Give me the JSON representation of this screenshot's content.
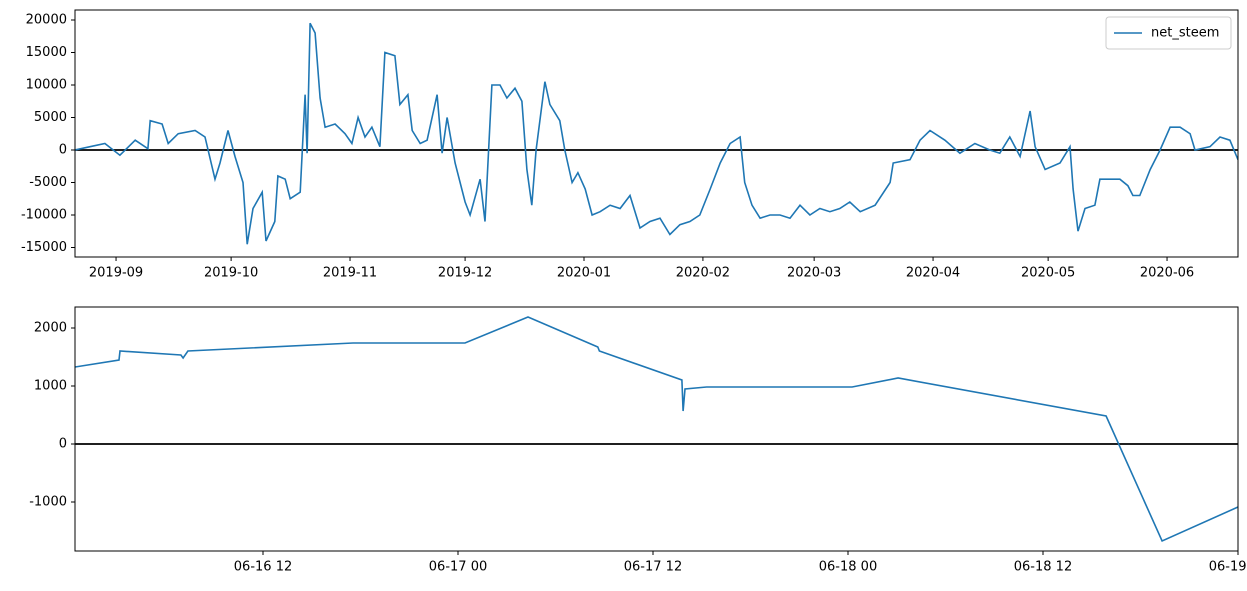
{
  "chart_data": [
    {
      "type": "line",
      "legend": "upper right",
      "xlim": [
        -10.7,
        292.5
      ],
      "xticks": [
        {
          "value": 0,
          "label": "2019-09"
        },
        {
          "value": 30,
          "label": "2019-10"
        },
        {
          "value": 61,
          "label": "2019-11"
        },
        {
          "value": 91,
          "label": "2019-12"
        },
        {
          "value": 122,
          "label": "2020-01"
        },
        {
          "value": 153,
          "label": "2020-02"
        },
        {
          "value": 182,
          "label": "2020-03"
        },
        {
          "value": 213,
          "label": "2020-04"
        },
        {
          "value": 243,
          "label": "2020-05"
        },
        {
          "value": 274,
          "label": "2020-06"
        }
      ],
      "ylim": [
        -16462,
        21538
      ],
      "yticks": [
        -15000,
        -10000,
        -5000,
        0,
        5000,
        10000,
        15000,
        20000
      ],
      "hline": 0,
      "x": [
        -10.7,
        -6.8,
        -2.9,
        1.0,
        5.0,
        8.3,
        8.9,
        12.0,
        13.6,
        16.2,
        20.6,
        23.2,
        25.8,
        27.1,
        29.2,
        31.0,
        33.1,
        34.2,
        35.7,
        38.1,
        39.1,
        41.4,
        42.2,
        44.1,
        45.4,
        48.0,
        49.3,
        49.8,
        50.6,
        51.9,
        53.2,
        54.5,
        57.1,
        59.7,
        61.5,
        63.1,
        64.9,
        66.7,
        68.8,
        70.1,
        72.7,
        74.0,
        76.1,
        77.2,
        79.3,
        81.1,
        83.7,
        85.0,
        86.3,
        88.4,
        91.0,
        92.3,
        94.9,
        96.2,
        98.0,
        100.1,
        101.9,
        104.0,
        105.8,
        107.1,
        108.4,
        109.5,
        111.8,
        113.1,
        115.7,
        117.0,
        118.9,
        120.4,
        122.3,
        124.1,
        126.2,
        128.8,
        131.4,
        134.0,
        136.6,
        139.2,
        141.8,
        144.4,
        147.0,
        149.6,
        152.2,
        154.9,
        157.5,
        160.1,
        162.7,
        163.9,
        165.8,
        167.9,
        170.5,
        173.1,
        175.7,
        178.3,
        180.9,
        183.5,
        186.1,
        188.7,
        191.3,
        194.0,
        197.9,
        201.8,
        202.6,
        207.0,
        209.6,
        212.2,
        216.1,
        220.0,
        223.9,
        227.8,
        230.4,
        233.0,
        235.7,
        238.3,
        239.6,
        242.2,
        246.1,
        248.7,
        249.5,
        250.8,
        252.6,
        255.2,
        256.5,
        261.7,
        263.8,
        265.1,
        266.9,
        269.6,
        272.2,
        274.8,
        277.4,
        280.0,
        281.3,
        285.2,
        287.8,
        290.4,
        292.5
      ],
      "series": [
        {
          "name": "net_steem",
          "color": "#1f77b4",
          "values": [
            0,
            500,
            1000,
            -800,
            1500,
            200,
            4500,
            4000,
            1000,
            2500,
            3000,
            2000,
            -4500,
            -2000,
            3000,
            -1000,
            -5000,
            -14500,
            -9000,
            -6500,
            -14000,
            -11000,
            -4000,
            -4500,
            -7500,
            -6500,
            8500,
            -500,
            19500,
            18000,
            8000,
            3500,
            4000,
            2500,
            1000,
            5000,
            2000,
            3500,
            500,
            15000,
            14500,
            7000,
            8500,
            3000,
            1000,
            1500,
            8500,
            -500,
            5000,
            -2000,
            -8000,
            -10000,
            -4500,
            -11000,
            10000,
            10000,
            8000,
            9500,
            7500,
            -3000,
            -8500,
            0,
            10500,
            7000,
            4500,
            0,
            -5000,
            -3500,
            -6000,
            -10000,
            -9500,
            -8500,
            -9000,
            -7000,
            -12000,
            -11000,
            -10500,
            -13000,
            -11500,
            -11000,
            -10000,
            -6000,
            -2000,
            1000,
            2000,
            -5000,
            -8500,
            -10500,
            -10000,
            -10000,
            -10500,
            -8500,
            -10000,
            -9000,
            -9500,
            -9000,
            -8000,
            -9500,
            -8500,
            -5000,
            -2000,
            -1500,
            1500,
            3000,
            1500,
            -500,
            1000,
            0,
            -500,
            2000,
            -1000,
            6000,
            500,
            -3000,
            -2000,
            500,
            -6000,
            -12500,
            -9000,
            -8500,
            -4500,
            -4500,
            -5500,
            -7000,
            -7000,
            -3000,
            0,
            3500,
            3500,
            2500,
            0,
            500,
            2000,
            1500,
            -1500
          ]
        }
      ]
    },
    {
      "type": "line",
      "xlim": [
        0.43,
        72
      ],
      "xticks": [
        {
          "value": 12,
          "label": "06-16 12"
        },
        {
          "value": 24,
          "label": "06-17 00"
        },
        {
          "value": 36,
          "label": "06-17 12"
        },
        {
          "value": 48,
          "label": "06-18 00"
        },
        {
          "value": 60,
          "label": "06-18 12"
        },
        {
          "value": 72,
          "label": "06-19 00"
        }
      ],
      "ylim": [
        -1845,
        2362
      ],
      "yticks": [
        -1000,
        0,
        1000,
        2000
      ],
      "hline": 0,
      "x": [
        0.43,
        3.14,
        3.2,
        6.95,
        7.08,
        7.38,
        17.54,
        24.43,
        28.31,
        32.6,
        32.7,
        37.78,
        37.85,
        37.97,
        39.3,
        48.25,
        51.08,
        63.88,
        67.33,
        72
      ],
      "series": [
        {
          "color": "#1f77b4",
          "values": [
            1328,
            1448,
            1603,
            1534,
            1483,
            1603,
            1741,
            1741,
            2190,
            1672,
            1603,
            1103,
            569,
            948,
            983,
            983,
            1138,
            483,
            -1672,
            -1086
          ]
        }
      ]
    }
  ]
}
